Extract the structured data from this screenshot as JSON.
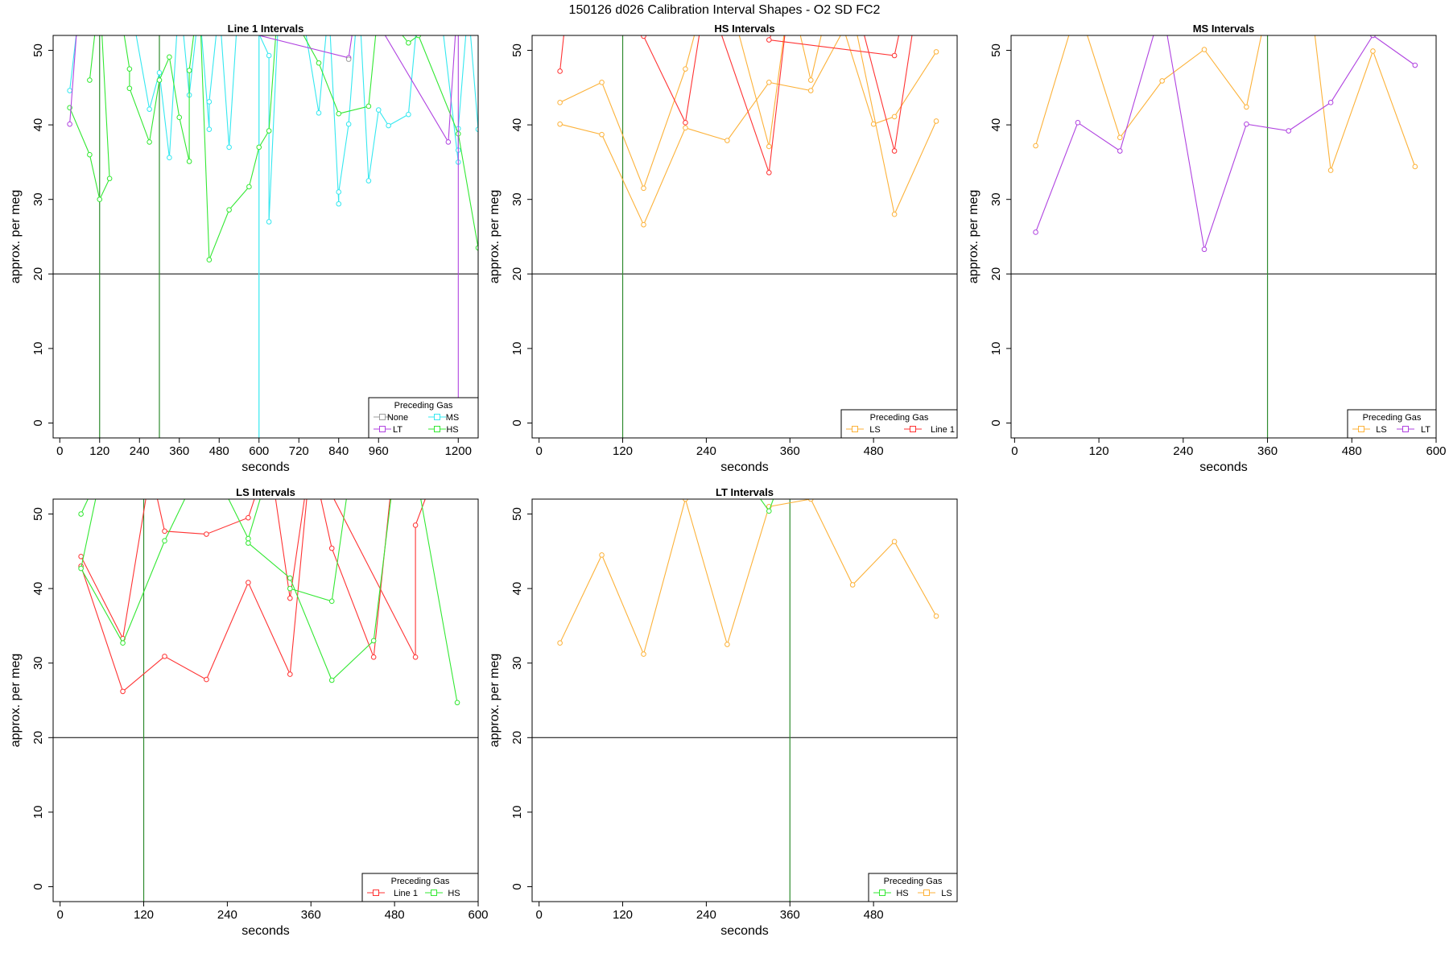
{
  "figure": {
    "title": "150126   d026   Calibration Interval Shapes - O2 SD FC2"
  },
  "colors": {
    "None": "#9e9e9e",
    "LT": "#b043e0",
    "MS": "#35e8f0",
    "HS": "#33e833",
    "LS": "#fcb23a",
    "Line 1": "#ff3333",
    "vline": "#2e8b2e",
    "hline": "#000000"
  },
  "chart_data": [
    {
      "id": "line1",
      "type": "line",
      "title": "Line 1 Intervals",
      "xlabel": "seconds",
      "ylabel": "approx. per meg",
      "xlim": [
        -20,
        1260
      ],
      "ylim": [
        -2,
        52
      ],
      "xticks": [
        0,
        120,
        240,
        360,
        480,
        600,
        720,
        840,
        960,
        1200
      ],
      "yticks": [
        0,
        10,
        20,
        30,
        40,
        50
      ],
      "hline": 20,
      "vlines": [
        {
          "x": 120,
          "color": "vline"
        },
        {
          "x": 300,
          "color": "vline"
        },
        {
          "x": 600,
          "color": "MS"
        }
      ],
      "legend": {
        "title": "Preceding Gas",
        "position": "bottom-right",
        "cols": 2,
        "entries": [
          "None",
          "MS",
          "LT",
          "HS"
        ]
      },
      "series": [
        {
          "name": "MS",
          "points": [
            [
              30,
              44.6
            ],
            [
              60,
              56
            ],
            [
              90,
              58
            ],
            [
              150,
              60
            ],
            [
              210,
              57
            ],
            [
              270,
              42.1
            ],
            [
              300,
              47
            ],
            [
              330,
              35.6
            ],
            [
              360,
              58
            ],
            [
              390,
              44
            ],
            [
              420,
              56
            ],
            [
              450,
              39.4
            ],
            [
              450,
              43.1
            ],
            [
              480,
              56
            ],
            [
              510,
              37
            ],
            [
              540,
              58
            ],
            [
              630,
              49.3
            ],
            [
              630,
              27
            ],
            [
              660,
              56
            ],
            [
              720,
              58
            ],
            [
              780,
              41.6
            ],
            [
              810,
              56
            ],
            [
              840,
              29.4
            ],
            [
              840,
              31
            ],
            [
              870,
              40.1
            ],
            [
              900,
              58
            ],
            [
              930,
              32.5
            ],
            [
              960,
              42
            ],
            [
              990,
              39.9
            ],
            [
              1050,
              41.4
            ],
            [
              1080,
              56
            ],
            [
              1140,
              58
            ],
            [
              1200,
              35
            ],
            [
              1200,
              36.6
            ],
            [
              1200,
              39.5
            ],
            [
              1230,
              56
            ],
            [
              1260,
              39.4
            ]
          ]
        },
        {
          "name": "HS",
          "points": [
            [
              30,
              42.3
            ],
            [
              90,
              36
            ],
            [
              120,
              30
            ],
            [
              150,
              32.8
            ],
            [
              120,
              58
            ],
            [
              90,
              46
            ],
            [
              120,
              58
            ],
            [
              180,
              56
            ],
            [
              210,
              47.5
            ],
            [
              210,
              44.9
            ],
            [
              270,
              37.7
            ],
            [
              300,
              46
            ],
            [
              330,
              49.1
            ],
            [
              360,
              41
            ],
            [
              390,
              35.1
            ],
            [
              390,
              47.3
            ],
            [
              420,
              58
            ],
            [
              450,
              21.9
            ],
            [
              510,
              28.6
            ],
            [
              570,
              31.7
            ],
            [
              600,
              37
            ],
            [
              630,
              39.2
            ],
            [
              660,
              58
            ],
            [
              780,
              48.3
            ],
            [
              840,
              41.5
            ],
            [
              930,
              42.5
            ],
            [
              960,
              56
            ],
            [
              1050,
              51
            ],
            [
              1080,
              52
            ],
            [
              1200,
              38.8
            ],
            [
              1260,
              23.5
            ]
          ]
        },
        {
          "name": "LT",
          "points": [
            [
              30,
              40.1
            ],
            [
              60,
              58
            ],
            [
              870,
              49
            ],
            [
              900,
              58
            ],
            [
              1170,
              37.7
            ],
            [
              1200,
              58
            ],
            [
              1200,
              -2
            ]
          ]
        },
        {
          "name": "None",
          "points": [
            [
              870,
              48.8
            ]
          ]
        }
      ]
    },
    {
      "id": "hs",
      "type": "line",
      "title": "HS Intervals",
      "xlabel": "seconds",
      "ylabel": "approx. per meg",
      "xlim": [
        -10,
        600
      ],
      "ylim": [
        -2,
        52
      ],
      "xticks": [
        0,
        120,
        240,
        360,
        480
      ],
      "yticks": [
        0,
        10,
        20,
        30,
        40,
        50
      ],
      "hline": 20,
      "vlines": [
        {
          "x": 120,
          "color": "vline"
        }
      ],
      "legend": {
        "title": "Preceding Gas",
        "position": "bottom-right",
        "cols": 2,
        "entries": [
          "LS",
          "Line 1"
        ]
      },
      "series": [
        {
          "name": "LS",
          "points": [
            [
              30,
              43
            ],
            [
              90,
              45.7
            ],
            [
              150,
              31.5
            ],
            [
              210,
              47.5
            ],
            [
              240,
              58
            ],
            [
              270,
              58
            ],
            [
              330,
              37.1
            ],
            [
              360,
              58
            ],
            [
              390,
              46
            ],
            [
              420,
              58
            ],
            [
              480,
              40.1
            ],
            [
              510,
              41.1
            ],
            [
              570,
              49.8
            ]
          ]
        },
        {
          "name": "LS",
          "points": [
            [
              30,
              40.1
            ],
            [
              90,
              38.7
            ],
            [
              150,
              26.6
            ],
            [
              210,
              39.6
            ],
            [
              270,
              37.9
            ],
            [
              330,
              45.7
            ],
            [
              390,
              44.6
            ],
            [
              450,
              55
            ],
            [
              510,
              28
            ],
            [
              570,
              40.5
            ]
          ]
        },
        {
          "name": "Line 1",
          "points": [
            [
              30,
              47.2
            ],
            [
              40,
              56
            ],
            [
              150,
              51.9
            ],
            [
              210,
              40.3
            ],
            [
              240,
              58
            ],
            [
              330,
              33.6
            ],
            [
              360,
              58
            ],
            [
              330,
              51.4
            ],
            [
              510,
              49.3
            ],
            [
              530,
              58
            ]
          ]
        },
        {
          "name": "Line 1",
          "points": [
            [
              450,
              58
            ],
            [
              510,
              36.5
            ],
            [
              545,
              58
            ]
          ]
        }
      ]
    },
    {
      "id": "ms",
      "type": "line",
      "title": "MS Intervals",
      "xlabel": "seconds",
      "ylabel": "approx. per meg",
      "xlim": [
        -5,
        600
      ],
      "ylim": [
        -2,
        52
      ],
      "xticks": [
        0,
        120,
        240,
        360,
        480,
        600
      ],
      "yticks": [
        0,
        10,
        20,
        30,
        40,
        50
      ],
      "hline": 20,
      "vlines": [
        {
          "x": 360,
          "color": "vline"
        }
      ],
      "legend": {
        "title": "Preceding Gas",
        "position": "bottom-right",
        "cols": 2,
        "entries": [
          "LS",
          "LT"
        ]
      },
      "series": [
        {
          "name": "LS",
          "points": [
            [
              30,
              37.2
            ],
            [
              90,
              56
            ],
            [
              150,
              38.3
            ],
            [
              210,
              45.9
            ],
            [
              270,
              50.1
            ],
            [
              330,
              42.4
            ],
            [
              360,
              56
            ],
            [
              420,
              58
            ],
            [
              450,
              33.9
            ],
            [
              510,
              49.9
            ],
            [
              570,
              34.4
            ]
          ]
        },
        {
          "name": "LT",
          "points": [
            [
              30,
              25.6
            ],
            [
              90,
              40.3
            ],
            [
              150,
              36.5
            ],
            [
              210,
              56
            ],
            [
              270,
              23.3
            ],
            [
              330,
              40.1
            ],
            [
              390,
              39.2
            ],
            [
              450,
              43
            ],
            [
              510,
              52
            ],
            [
              570,
              48
            ]
          ]
        }
      ]
    },
    {
      "id": "ls",
      "type": "line",
      "title": "LS Intervals",
      "xlabel": "seconds",
      "ylabel": "approx. per meg",
      "xlim": [
        -10,
        600
      ],
      "ylim": [
        -2,
        52
      ],
      "xticks": [
        0,
        120,
        240,
        360,
        480,
        600
      ],
      "yticks": [
        0,
        10,
        20,
        30,
        40,
        50
      ],
      "hline": 20,
      "vlines": [
        {
          "x": 120,
          "color": "vline"
        }
      ],
      "legend": {
        "title": "Preceding Gas",
        "position": "bottom-right",
        "cols": 2,
        "entries": [
          "Line 1",
          "HS"
        ]
      },
      "series": [
        {
          "name": "Line 1",
          "points": [
            [
              30,
              44.3
            ],
            [
              90,
              33.3
            ],
            [
              130,
              56
            ],
            [
              150,
              47.7
            ],
            [
              210,
              47.3
            ],
            [
              270,
              49.5
            ],
            [
              300,
              58
            ],
            [
              330,
              38.7
            ],
            [
              360,
              58
            ],
            [
              390,
              45.4
            ],
            [
              450,
              30.8
            ],
            [
              480,
              58
            ]
          ]
        },
        {
          "name": "Line 1",
          "points": [
            [
              30,
              43
            ],
            [
              90,
              26.2
            ],
            [
              150,
              30.9
            ],
            [
              210,
              27.8
            ],
            [
              270,
              40.8
            ],
            [
              330,
              28.5
            ],
            [
              360,
              58
            ],
            [
              510,
              30.8
            ],
            [
              510,
              48.5
            ],
            [
              540,
              56
            ]
          ]
        },
        {
          "name": "HS",
          "points": [
            [
              30,
              50
            ],
            [
              60,
              56
            ],
            [
              30,
              42.7
            ],
            [
              90,
              32.7
            ],
            [
              150,
              46.4
            ],
            [
              210,
              58
            ],
            [
              270,
              46.7
            ],
            [
              300,
              56
            ]
          ]
        },
        {
          "name": "HS",
          "points": [
            [
              270,
              46.1
            ],
            [
              330,
              41.4
            ],
            [
              390,
              27.7
            ],
            [
              450,
              33
            ],
            [
              480,
              56
            ]
          ]
        },
        {
          "name": "HS",
          "points": [
            [
              330,
              40
            ],
            [
              390,
              38.3
            ],
            [
              420,
              58
            ],
            [
              510,
              56
            ],
            [
              570,
              24.7
            ]
          ]
        }
      ]
    },
    {
      "id": "lt",
      "type": "line",
      "title": "LT Intervals",
      "xlabel": "seconds",
      "ylabel": "approx. per meg",
      "xlim": [
        -10,
        600
      ],
      "ylim": [
        -2,
        52
      ],
      "xticks": [
        0,
        120,
        240,
        360,
        480
      ],
      "yticks": [
        0,
        10,
        20,
        30,
        40,
        50
      ],
      "hline": 20,
      "vlines": [
        {
          "x": 360,
          "color": "vline"
        }
      ],
      "legend": {
        "title": "Preceding Gas",
        "position": "bottom-right",
        "cols": 2,
        "entries": [
          "HS",
          "LS"
        ]
      },
      "series": [
        {
          "name": "LS",
          "points": [
            [
              30,
              32.7
            ],
            [
              90,
              44.5
            ],
            [
              150,
              31.2
            ],
            [
              210,
              52
            ],
            [
              270,
              32.5
            ],
            [
              330,
              51
            ],
            [
              390,
              52
            ],
            [
              450,
              40.5
            ],
            [
              510,
              46.3
            ],
            [
              570,
              36.3
            ]
          ]
        },
        {
          "name": "HS",
          "points": [
            [
              310,
              53
            ],
            [
              330,
              50.4
            ],
            [
              340,
              53
            ]
          ]
        }
      ]
    }
  ]
}
